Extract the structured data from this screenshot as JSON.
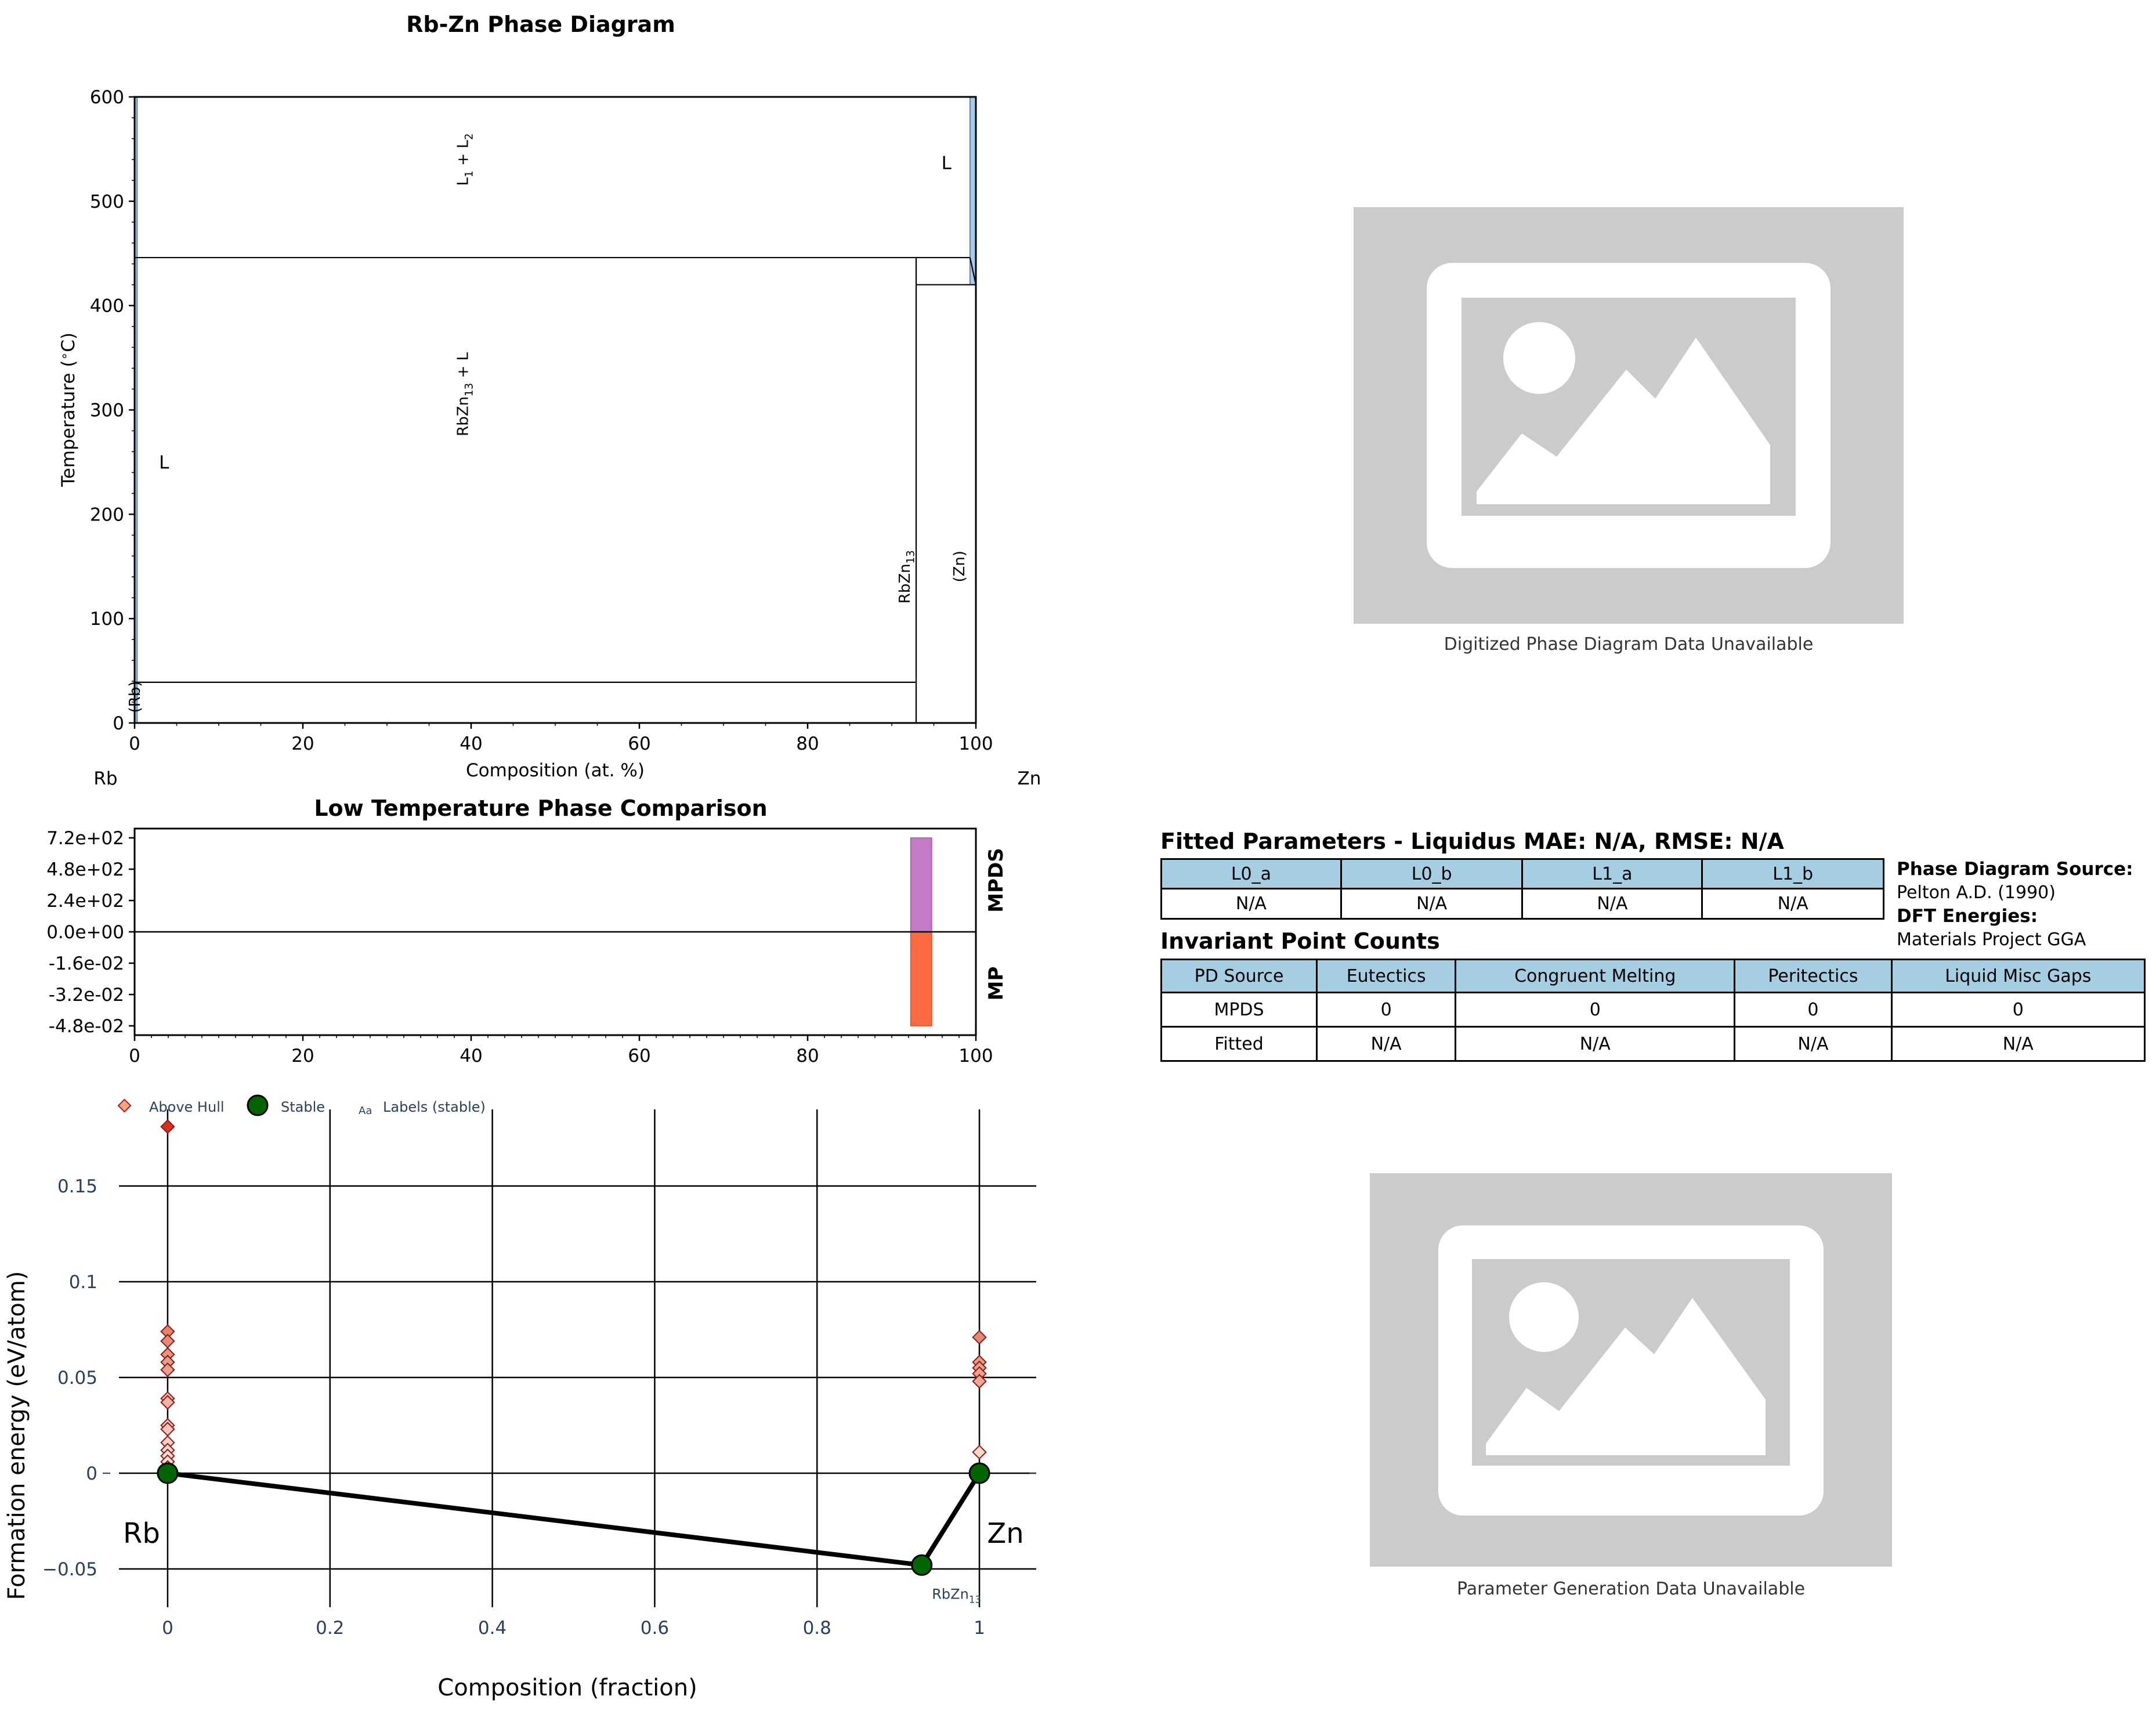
{
  "chart_data": [
    {
      "type": "area",
      "title": "Rb-Zn Phase Diagram",
      "xlabel": "Composition (at. %)",
      "ylabel": "Temperature ($^\\circ$C)",
      "xlim": [
        0,
        100
      ],
      "ylim": [
        0,
        600
      ],
      "xticks": [
        "0",
        "20",
        "40",
        "60",
        "80",
        "100"
      ],
      "yticks": [
        "0",
        "100",
        "200",
        "300",
        "400",
        "500",
        "600"
      ],
      "endpoint_labels": {
        "left": "Rb",
        "right": "Zn"
      },
      "boundaries": [
        {
          "from": [
            0,
            446
          ],
          "to": [
            99.3,
            446
          ]
        },
        {
          "from": [
            92.9,
            0
          ],
          "to": [
            92.9,
            446
          ]
        },
        {
          "from": [
            100,
            0
          ],
          "to": [
            100,
            420
          ]
        },
        {
          "from": [
            92.9,
            420
          ],
          "to": [
            100,
            420
          ]
        },
        {
          "from": [
            0,
            39
          ],
          "to": [
            92.9,
            39
          ]
        },
        {
          "from": [
            99.3,
            446
          ],
          "to": [
            100,
            420
          ]
        }
      ],
      "liquid_regions": [
        {
          "x": [
            0,
            0.3
          ],
          "y": [
            0,
            600
          ]
        },
        {
          "x": [
            99.3,
            100
          ],
          "y": [
            420,
            600
          ]
        }
      ],
      "region_labels": [
        {
          "text": "L",
          "x": 3.5,
          "y": 250
        },
        {
          "text": "L",
          "x": 96.5,
          "y": 537
        },
        {
          "text": "L$_1$ + L$_2$",
          "x": 39,
          "y": 540,
          "rotated": true
        },
        {
          "text": "RbZn$_{13}$ + L",
          "x": 39,
          "y": 315,
          "rotated": true
        },
        {
          "text": "RbZn$_{13}$",
          "x": 91.5,
          "y": 140,
          "rotated": true
        },
        {
          "text": "(Zn)",
          "x": 98,
          "y": 150,
          "rotated": true
        },
        {
          "text": "(Rb)",
          "x": 0,
          "y": 25,
          "rotated": true
        }
      ]
    },
    {
      "type": "bar",
      "title": "Low Temperature Phase Comparison",
      "xlim": [
        0,
        100
      ],
      "xticks": [
        "0",
        "20",
        "40",
        "60",
        "80",
        "100"
      ],
      "top_ylim": [
        0,
        720
      ],
      "bottom_ylim": [
        -0.048,
        0
      ],
      "top_yticks": [
        "7.2e+02",
        "4.8e+02",
        "2.4e+02",
        "0.0e+00"
      ],
      "bottom_yticks": [
        "-1.6e-02",
        "-3.2e-02",
        "-4.8e-02"
      ],
      "series": [
        {
          "name": "MPDS",
          "x": [
            92.9
          ],
          "width": 2.5,
          "values": [
            720
          ],
          "color": "#c27bc5"
        },
        {
          "name": "MP",
          "x": [
            92.9
          ],
          "width": 2.5,
          "values": [
            -0.048
          ],
          "color": "#ff6a42"
        }
      ]
    },
    {
      "type": "scatter",
      "xlabel": "Composition (fraction)",
      "ylabel": "Formation energy (eV/atom)",
      "xlim": [
        -0.06,
        1.07
      ],
      "ylim": [
        -0.07,
        0.19
      ],
      "xticks": [
        "0",
        "0.2",
        "0.4",
        "0.6",
        "0.8",
        "1"
      ],
      "yticks": [
        "−0.05",
        "0",
        "0.05",
        "0.1",
        "0.15"
      ],
      "legend": [
        "Above Hull",
        "Stable",
        "Labels (stable)"
      ],
      "legend_position": "top-left",
      "legend_text_icon": "Aa",
      "hull_line": {
        "x": [
          0,
          0.929,
          1
        ],
        "y": [
          0,
          -0.048,
          0
        ]
      },
      "stable": {
        "x": [
          0,
          0.929,
          1
        ],
        "y": [
          0,
          -0.048,
          0
        ]
      },
      "stable_labels": [
        {
          "text": "Rb",
          "x": 0,
          "y": 0,
          "big": true
        },
        {
          "text": "RbZn$_{13}$",
          "x": 0.929,
          "y": -0.048,
          "big": false
        },
        {
          "text": "Zn",
          "x": 1,
          "y": 0,
          "big": true
        }
      ],
      "above_hull": {
        "x": [
          0,
          0,
          0,
          0,
          0,
          0,
          0,
          0,
          0,
          0,
          0,
          0,
          0,
          0,
          0,
          0,
          1,
          1,
          1,
          1,
          1,
          1
        ],
        "y": [
          0.181,
          0.074,
          0.069,
          0.062,
          0.058,
          0.054,
          0.039,
          0.037,
          0.025,
          0.023,
          0.016,
          0.012,
          0.009,
          0.006,
          0.003,
          0.001,
          0.071,
          0.058,
          0.055,
          0.052,
          0.048,
          0.011
        ]
      }
    }
  ],
  "placeholders": [
    {
      "caption": "Digitized Phase Diagram Data Unavailable"
    },
    {
      "caption": "Parameter Generation Data Unavailable"
    }
  ],
  "fitted": {
    "title": "Fitted Parameters - Liquidus MAE: N/A, RMSE: N/A",
    "headers": [
      "L0_a",
      "L0_b",
      "L1_a",
      "L1_b"
    ],
    "values": [
      "N/A",
      "N/A",
      "N/A",
      "N/A"
    ]
  },
  "sources": {
    "pd_label": "Phase Diagram Source:",
    "pd_value": "Pelton A.D. (1990)",
    "dft_label": "DFT Energies:",
    "dft_value": "Materials Project GGA"
  },
  "invariant": {
    "title": "Invariant Point Counts",
    "headers": [
      "PD Source",
      "Eutectics",
      "Congruent Melting",
      "Peritectics",
      "Liquid Misc Gaps"
    ],
    "rows": [
      [
        "MPDS",
        "0",
        "0",
        "0",
        "0"
      ],
      [
        "Fitted",
        "N/A",
        "N/A",
        "N/A",
        "N/A"
      ]
    ]
  }
}
